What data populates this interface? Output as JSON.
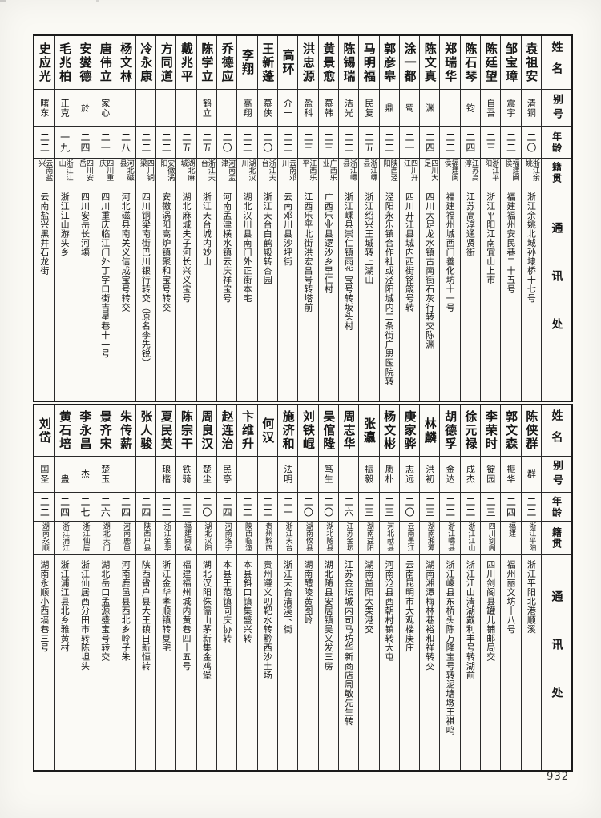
{
  "page": {
    "number": "932"
  },
  "headers": {
    "name": "姓名",
    "alias": "别号",
    "age": "年龄",
    "native": "籍贯",
    "contact": "通讯处"
  },
  "tables": [
    {
      "section": "top",
      "persons": [
        {
          "name": "袁祖安",
          "alias": "清铜",
          "age": "二〇",
          "native": "浙江余姚",
          "addr": "浙江余姚北城孙埭桥十七号"
        },
        {
          "name": "邹宝璋",
          "alias": "震宇",
          "age": "二二",
          "native": "福建闽侯",
          "addr": "福建福州安民巷二十五号"
        },
        {
          "name": "陈廷望",
          "alias": "自吾",
          "age": "二三",
          "native": "浙江平阳",
          "addr": "浙江平阳江南宜山上市"
        },
        {
          "name": "陈石琴",
          "alias": "钧",
          "age": "二四",
          "native": "江苏高淳",
          "addr": "江苏高淳通贤街"
        },
        {
          "name": "郑瑞华",
          "alias": "",
          "age": "二二",
          "native": "福建闽侯",
          "addr": "福建福州城西门善化坊十一号"
        },
        {
          "name": "陈文真",
          "alias": "渊",
          "age": "二四",
          "native": "四川大足",
          "addr": "四川大足龙水镇古南街石灰行转交陈渊"
        },
        {
          "name": "涂一都",
          "alias": "蜀",
          "age": "二一",
          "native": "四川开江",
          "addr": "四川开江县城内西街铭箴号转"
        },
        {
          "name": "郭彦皋",
          "alias": "鼎",
          "age": "二二",
          "native": "陕西泾阳",
          "addr": "泾阳永乐镇合作社或泾阳城内二条街广恩医院转"
        },
        {
          "name": "马明福",
          "alias": "民复",
          "age": "二五",
          "native": "浙江嵊县",
          "addr": "浙江绍兴王城转上湖山"
        },
        {
          "name": "陈锡瑞",
          "alias": "洁光",
          "age": "二二",
          "native": "浙江嵊县",
          "addr": "浙江嵊县崇仁镇雨华宝号转坂头村"
        },
        {
          "name": "黄景愈",
          "alias": "慕韩",
          "age": "二三",
          "native": "广西乐业",
          "addr": "广西乐业县逻沙乡里仁村"
        },
        {
          "name": "洪忠源",
          "alias": "盈科",
          "age": "二三",
          "native": "江西乐平",
          "addr": "江西乐平北街洪宏昌号转塔前"
        },
        {
          "name": "高环",
          "alias": "介一",
          "age": "二二",
          "native": "云南邓川",
          "addr": "云南邓川县沙坪街"
        },
        {
          "name": "王新蓬",
          "alias": "慕侠",
          "age": "二〇",
          "native": "浙江天台",
          "addr": "浙江天台白鹤殿转杏园"
        },
        {
          "name": "李翔",
          "alias": "高翔",
          "age": "二二",
          "native": "湖北汉川",
          "addr": "湖北汉川县南门外正街本宅"
        },
        {
          "name": "乔德应",
          "alias": "",
          "age": "二〇",
          "native": "河南孟津",
          "addr": "河南孟津横水镇云庆祥宝号"
        },
        {
          "name": "陈学立",
          "alias": "鹤立",
          "age": "二五",
          "native": "浙江天台",
          "addr": "浙江天台城内妙山"
        },
        {
          "name": "戴兆平",
          "alias": "",
          "age": "二五",
          "native": "湖北麻城",
          "addr": "湖北麻城夫子河长兴义宝号"
        },
        {
          "name": "方同道",
          "alias": "",
          "age": "二二",
          "native": "安徽涡阳",
          "addr": "安徽涡阳高炉镇聚和宝号转交"
        },
        {
          "name": "冷永康",
          "alias": "",
          "age": "二二",
          "native": "四川铜梁",
          "addr": "四川铜梁南街巴川银行转交（原名李先锐）"
        },
        {
          "name": "杨文林",
          "alias": "",
          "age": "二八",
          "native": "河北磁县",
          "addr": "河北磁县南关义信成宝号转交"
        },
        {
          "name": "唐伟立",
          "alias": "家心",
          "age": "二一",
          "native": "四川重庆",
          "addr": "四川重庆临江门外丁字口街吉星巷十一号"
        },
        {
          "name": "安燮德",
          "alias": "於",
          "age": "二四",
          "native": "四川安岳",
          "addr": "四川安岳长河塲"
        },
        {
          "name": "毛兆柏",
          "alias": "正克",
          "age": "一九",
          "native": "浙江江山",
          "addr": "浙江江山游头乡"
        },
        {
          "name": "史应光",
          "alias": "曙东",
          "age": "二二",
          "native": "云南盐兴",
          "addr": "云南盐兴黑井石龙街"
        }
      ]
    },
    {
      "section": "bottom",
      "persons": [
        {
          "name": "陈侠群",
          "alias": "群",
          "age": "二二",
          "native": "浙江平阳",
          "addr": "浙江平阳北港顺溪"
        },
        {
          "name": "郭文森",
          "alias": "振华",
          "age": "二四",
          "native": "福建",
          "addr": "福州丽文坊十八号"
        },
        {
          "name": "李荣时",
          "alias": "锭园",
          "age": "二三",
          "native": "四川剑阁",
          "addr": "四川剑阁县罐儿铺邮局交"
        },
        {
          "name": "徐元禄",
          "alias": "成杰",
          "age": "二二",
          "native": "浙江江山",
          "addr": "浙江江山清湖戴利丰号转湖前"
        },
        {
          "name": "胡德孚",
          "alias": "金达",
          "age": "二二",
          "native": "浙江嵊县",
          "addr": "浙江嵊县东桥头陈万隆宝号转泥塘墩王祺鸣"
        },
        {
          "name": "林麟",
          "alias": "洪初",
          "age": "二三",
          "native": "湖南湘潭",
          "addr": "湖南湘潭梅林巷裕和祥转交"
        },
        {
          "name": "庚家骅",
          "alias": "志远",
          "age": "二〇",
          "native": "云南墨江",
          "addr": "云南昆明市大观楼庚庄"
        },
        {
          "name": "杨文彬",
          "alias": "质朴",
          "age": "二三",
          "native": "河北献县",
          "addr": "河南沧县西朝村镇转大屯"
        },
        {
          "name": "张瀛",
          "alias": "振毅",
          "age": "二三",
          "native": "湖南益阳",
          "addr": "湖南益阳大栗港交"
        },
        {
          "name": "周志华",
          "alias": "",
          "age": "二六",
          "native": "江苏金坛",
          "addr": "江苏金坛城内司马坊华新商店周敏先生转"
        },
        {
          "name": "吴倌隆",
          "alias": "笃生",
          "age": "二〇",
          "native": "湖北随县",
          "addr": "湖北随县安居镇吴义发三房"
        },
        {
          "name": "刘铁崐",
          "alias": "",
          "age": "二〇",
          "native": "湖南攸县",
          "addr": "湖南醴陵黄图岭"
        },
        {
          "name": "施济和",
          "alias": "法明",
          "age": "二一",
          "native": "浙江天台",
          "addr": "浙江天台清溪下街"
        },
        {
          "name": "何汉",
          "alias": "",
          "age": "二二",
          "native": "贵州黔西",
          "addr": "贵州遵义叨靶水转黔西沙土场"
        },
        {
          "name": "卞维升",
          "alias": "",
          "age": "二二",
          "native": "陕西临潼",
          "addr": "本县斜口镇集盛兴转"
        },
        {
          "name": "赵连治",
          "alias": "民亭",
          "age": "二四",
          "native": "河南洛宁",
          "addr": "本县王范镇同庆协转"
        },
        {
          "name": "周良汉",
          "alias": "楚尘",
          "age": "二〇",
          "native": "湖北汉阳",
          "addr": "湖北汉阳侏儒山茅新集金鸡堡"
        },
        {
          "name": "陈宗干",
          "alias": "铁骑",
          "age": "二三",
          "native": "福建闽侯",
          "addr": "福建福州城内黄巷四十五号"
        },
        {
          "name": "夏民英",
          "alias": "琅楷",
          "age": "二二",
          "native": "浙江金华",
          "addr": "浙江金华孝顺镇转夏宅"
        },
        {
          "name": "张人骏",
          "alias": "",
          "age": "二四",
          "native": "陕西户县",
          "addr": "陕西省户县大王镇日新恒转"
        },
        {
          "name": "朱传薪",
          "alias": "",
          "age": "二四",
          "native": "河南鹿邑",
          "addr": "河南鹿邑县西北乡岭子朱"
        },
        {
          "name": "景齐宋",
          "alias": "楚玉",
          "age": "二六",
          "native": "湖北天门",
          "addr": "湖北岳口孟源盛宝号转交"
        },
        {
          "name": "李永昌",
          "alias": "杰",
          "age": "二七",
          "native": "浙江仙居",
          "addr": "浙江仙居西分田市转陈坦头"
        },
        {
          "name": "黄石培",
          "alias": "一蛊",
          "age": "二四",
          "native": "浙江浦江",
          "addr": "浙江浦江县北乡雅黄村"
        },
        {
          "name": "刘岱",
          "alias": "国圣",
          "age": "二二",
          "native": "湖南永顺",
          "addr": "湖南永顺小西墙巷三号"
        }
      ]
    }
  ]
}
